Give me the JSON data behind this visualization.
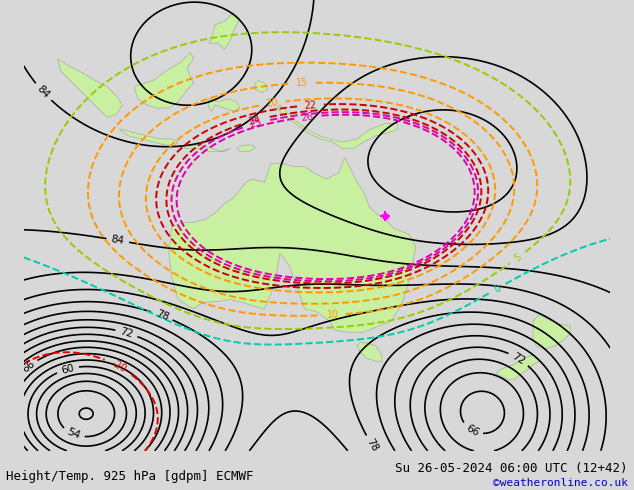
{
  "title_left": "Height/Temp. 925 hPa [gdpm] ECMWF",
  "title_right": "Su 26-05-2024 06:00 UTC (12+42)",
  "credit": "©weatheronline.co.uk",
  "background_color": "#d8d8d8",
  "land_color": "#c8f0a0",
  "land_edge_color": "#aaaaaa",
  "fig_width": 6.34,
  "fig_height": 4.9,
  "dpi": 100,
  "title_fontsize": 9.0,
  "credit_fontsize": 8,
  "credit_color": "#0000cc",
  "contour_black_lw": 1.2,
  "contour_temp_lw": 1.4
}
